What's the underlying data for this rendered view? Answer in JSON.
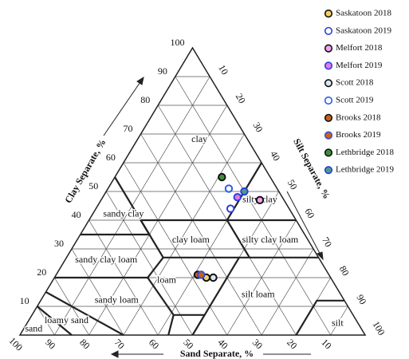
{
  "chart_data": {
    "type": "ternary",
    "axes": [
      {
        "title": "Clay Separate, %",
        "ticks": [
          10,
          20,
          30,
          40,
          50,
          60,
          70,
          80,
          90,
          100
        ]
      },
      {
        "title": "Silt Separate, %",
        "ticks": [
          10,
          20,
          30,
          40,
          50,
          60,
          70,
          80,
          90,
          100
        ]
      },
      {
        "title": "Sand Separate, %",
        "ticks": [
          10,
          20,
          30,
          40,
          50,
          60,
          70,
          80,
          90,
          100
        ]
      }
    ],
    "regions": [
      "clay",
      "silty clay",
      "sandy clay",
      "clay loam",
      "silty clay loam",
      "sandy clay loam",
      "loam",
      "silt loam",
      "sandy loam",
      "loamy sand",
      "sand",
      "silt"
    ],
    "series": [
      {
        "name": "Saskatoon 2018",
        "color": "#f3cf6a",
        "edgecolor": "#111111",
        "clay": 20,
        "silt": 44,
        "sand": 36
      },
      {
        "name": "Saskatoon 2019",
        "color": "#ffffff",
        "edgecolor": "#2b3fe0",
        "clay": 44,
        "silt": 39,
        "sand": 17
      },
      {
        "name": "Melfort 2018",
        "color": "#f2a2ee",
        "edgecolor": "#111111",
        "clay": 47,
        "silt": 46,
        "sand": 7
      },
      {
        "name": "Melfort 2019",
        "color": "#e07ce6",
        "edgecolor": "#2b3fe0",
        "clay": 48,
        "silt": 39,
        "sand": 13
      },
      {
        "name": "Scott 2018",
        "color": "#d9e6f2",
        "edgecolor": "#111111",
        "clay": 20,
        "silt": 46,
        "sand": 34
      },
      {
        "name": "Scott 2019",
        "color": "#ffffff",
        "edgecolor": "#2b5fe8",
        "clay": 51,
        "silt": 35,
        "sand": 14
      },
      {
        "name": "Brooks 2018",
        "color": "#c8601c",
        "edgecolor": "#111111",
        "clay": 21,
        "silt": 41,
        "sand": 38
      },
      {
        "name": "Brooks 2019",
        "color": "#c8601c",
        "edgecolor": "#3a4fd0",
        "clay": 21,
        "silt": 42,
        "sand": 37
      },
      {
        "name": "Lethbridge 2018",
        "color": "#3f8f3a",
        "edgecolor": "#111111",
        "clay": 55,
        "silt": 31,
        "sand": 14
      },
      {
        "name": "Lethbridge 2019",
        "color": "#4f9a86",
        "edgecolor": "#2b3fe0",
        "clay": 50,
        "silt": 40,
        "sand": 10
      }
    ]
  }
}
